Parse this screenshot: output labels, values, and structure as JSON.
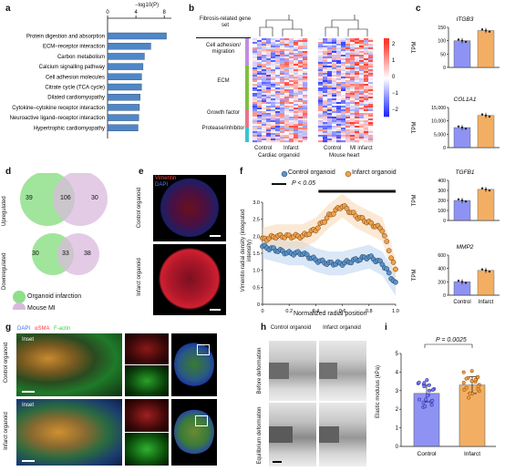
{
  "panels": [
    "a",
    "b",
    "c",
    "d",
    "e",
    "f",
    "g",
    "h",
    "i"
  ],
  "a": {
    "axis_label": "−log10(P)",
    "ticks": [
      "0",
      "4",
      "8"
    ],
    "terms": [
      "Protein digestion and absorption",
      "ECM–receptor interaction",
      "Carbon metabolism",
      "Calcium signalling pathway",
      "Cell adhesion molecules",
      "Citrate cycle (TCA cycle)",
      "Dilated cardiomyopathy",
      "Cytokine–cytokine receptor interaction",
      "Neuroactive ligand–receptor interaction",
      "Hypertrophic cardiomyopathy"
    ],
    "values": [
      8.3,
      6.1,
      5.2,
      5.0,
      4.8,
      4.8,
      4.6,
      4.5,
      4.4,
      4.3
    ],
    "bar_color": "#4f86c6"
  },
  "b": {
    "gene_set_header": "Fibrosis-related gene set",
    "categories": [
      "Cell adhesion/ migration",
      "ECM",
      "Growth factor",
      "Protease/inhibitor"
    ],
    "category_colors": [
      "#c58be0",
      "#7fbf3f",
      "#e8748a",
      "#39c4cf"
    ],
    "group1": {
      "name": "Cardiac organoid",
      "cols": [
        "Control",
        "Infarct"
      ]
    },
    "group2": {
      "name": "Mouse heart",
      "cols": [
        "Control",
        "MI infarct"
      ]
    },
    "colorbar_ticks": [
      "2",
      "1",
      "0",
      "−1",
      "−2"
    ]
  },
  "c": {
    "genes": [
      {
        "name": "ITGB3",
        "ticks": [
          "150",
          "100",
          "50",
          "0"
        ],
        "control": 100,
        "infarct": 138,
        "max": 150
      },
      {
        "name": "COL1A1",
        "ticks": [
          "15,000",
          "10,000",
          "5,000",
          "0"
        ],
        "control": 7500,
        "infarct": 12000,
        "max": 15000
      },
      {
        "name": "TGFB1",
        "ticks": [
          "400",
          "300",
          "200",
          "100",
          "0"
        ],
        "control": 200,
        "infarct": 310,
        "max": 400
      },
      {
        "name": "MMP2",
        "ticks": [
          "600",
          "400",
          "200",
          "0"
        ],
        "control": 200,
        "infarct": 370,
        "max": 600
      }
    ],
    "ylabel": "TPM",
    "xlabels": [
      "Control",
      "Infarct"
    ],
    "control_color": "#7b7ff0",
    "infarct_color": "#f0a24a"
  },
  "d": {
    "up": {
      "left": "39",
      "mid": "106",
      "right": "30",
      "label": "Upregulated"
    },
    "down": {
      "left": "30",
      "mid": "33",
      "right": "38",
      "label": "Downregulated"
    },
    "legend": [
      "Organoid infarction",
      "Mouse MI"
    ],
    "colors": [
      "#8fe08a",
      "#d9b9dc"
    ]
  },
  "e": {
    "stain1": "Vimentin",
    "stain2": "DAPI",
    "labels": [
      "Control organoid",
      "Infarct organoid"
    ]
  },
  "f": {
    "legend": [
      "Control organoid",
      "Infarct organoid"
    ],
    "sig_label": "P < 0.05",
    "xlabel": "Normalized radial position",
    "ylabel": "Vimentin radial density (integrated intensity)",
    "xticks": [
      "0",
      "0.2",
      "0.4",
      "0.6",
      "0.8",
      "1.0"
    ],
    "yticks": [
      "0",
      "0.5",
      "1.0",
      "1.5",
      "2.0",
      "2.5",
      "3.0"
    ]
  },
  "chart_data": [
    {
      "type": "bar",
      "categories": [
        "Protein digestion and absorption",
        "ECM–receptor interaction",
        "Carbon metabolism",
        "Calcium signalling pathway",
        "Cell adhesion molecules",
        "Citrate cycle (TCA cycle)",
        "Dilated cardiomyopathy",
        "Cytokine–cytokine receptor interaction",
        "Neuroactive ligand–receptor interaction",
        "Hypertrophic cardiomyopathy"
      ],
      "values": [
        8.3,
        6.1,
        5.2,
        5.0,
        4.8,
        4.8,
        4.6,
        4.5,
        4.4,
        4.3
      ],
      "xlabel": "−log10(P)",
      "xlim": [
        0,
        9
      ]
    },
    {
      "type": "scatter",
      "x_range": [
        0,
        1.0
      ],
      "ylim": [
        0,
        3.0
      ],
      "series": [
        {
          "name": "Control organoid",
          "x": [
            0.0,
            0.1,
            0.2,
            0.3,
            0.4,
            0.5,
            0.6,
            0.7,
            0.8,
            0.9,
            1.0
          ],
          "y": [
            1.7,
            1.6,
            1.5,
            1.5,
            1.3,
            1.2,
            1.2,
            1.3,
            1.4,
            1.2,
            0.6
          ]
        },
        {
          "name": "Infarct organoid",
          "x": [
            0.0,
            0.1,
            0.2,
            0.3,
            0.4,
            0.5,
            0.6,
            0.7,
            0.8,
            0.9,
            1.0
          ],
          "y": [
            1.9,
            2.0,
            2.0,
            2.0,
            2.2,
            2.6,
            2.9,
            2.6,
            2.4,
            2.2,
            1.0
          ]
        }
      ]
    },
    {
      "type": "bar",
      "categories": [
        "Control",
        "Infarct"
      ],
      "values": [
        2.85,
        3.3
      ],
      "ylabel": "Elastic modulus (kPa)",
      "ylim": [
        0,
        5
      ],
      "annotation": "P = 0.0025"
    }
  ],
  "g": {
    "stains": [
      "DAPI",
      "αSMA",
      "F-actin"
    ],
    "stain_colors": [
      "#3a6bff",
      "#ff3a3a",
      "#3fd13f"
    ],
    "labels": [
      "Control organoid",
      "Infarct organoid"
    ],
    "inset": "Inset"
  },
  "h": {
    "cols": [
      "Control organoid",
      "Infarct organoid"
    ],
    "rows": [
      "Before deformation",
      "Equilibrium deformation"
    ]
  },
  "i": {
    "p_label": "P = 0.0025",
    "ylabel": "Elastic modulus (kPa)",
    "yticks": [
      "5",
      "4",
      "3",
      "2",
      "1",
      "0"
    ],
    "xlabels": [
      "Control",
      "Infarct"
    ]
  }
}
